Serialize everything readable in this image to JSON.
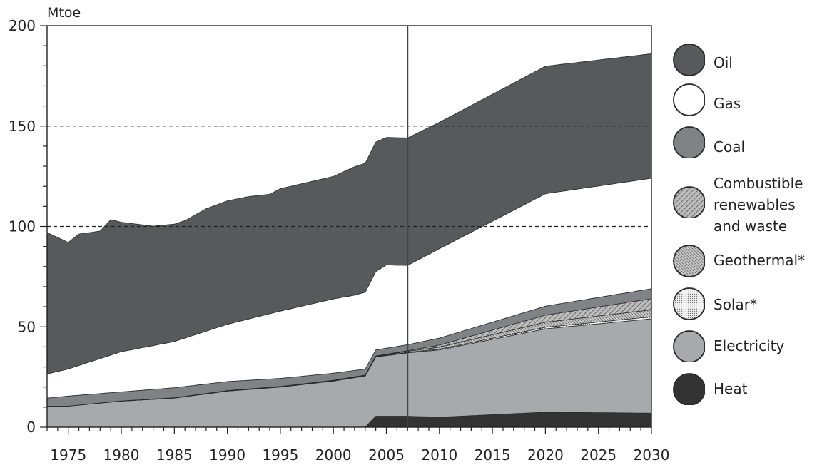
{
  "chart_data": {
    "type": "area",
    "unit_label": "Mtoe",
    "ylim": [
      0,
      200
    ],
    "y_ticks": [
      0,
      50,
      100,
      150,
      200
    ],
    "xlim": [
      1973,
      2030
    ],
    "x_ticks": [
      1975,
      1980,
      1985,
      1990,
      1995,
      2000,
      2005,
      2010,
      2015,
      2020,
      2025,
      2030
    ],
    "grid": "dashed horizontal at 100 and 150",
    "projection_divider_x": 2007,
    "legend_position": "right",
    "series": [
      {
        "name": "Heat",
        "color": "#333333",
        "x": [
          1973,
          2003,
          2004,
          2007,
          2010,
          2020,
          2030
        ],
        "values": [
          0,
          0,
          5.5,
          5.5,
          5,
          7.5,
          7
        ]
      },
      {
        "name": "Electricity",
        "color": "#a7a9ac",
        "x": [
          1973,
          1975,
          1980,
          1985,
          1990,
          1995,
          2000,
          2003,
          2004,
          2007,
          2010,
          2020,
          2030
        ],
        "values": [
          10.5,
          10.5,
          13,
          14.5,
          18,
          20,
          23,
          25.5,
          29.5,
          31.5,
          33.5,
          41.5,
          47
        ]
      },
      {
        "name": "Solar*",
        "color": "#d6d6d6",
        "x": [
          1973,
          2004,
          2007,
          2010,
          2020,
          2030
        ],
        "values": [
          0,
          0,
          0.3,
          0.4,
          0.8,
          1
        ]
      },
      {
        "name": "Geothermal*",
        "color": "#8e8e8e",
        "x": [
          1973,
          2004,
          2007,
          2010,
          2020,
          2030
        ],
        "values": [
          0,
          0.2,
          0.5,
          1,
          2.5,
          3.5
        ]
      },
      {
        "name": "Combustible renewables and waste",
        "color": "#9a9a9a",
        "x": [
          1973,
          2007,
          2010,
          2020,
          2030
        ],
        "values": [
          0,
          0.3,
          1,
          3.5,
          5.5
        ]
      },
      {
        "name": "Coal",
        "color": "#808285",
        "x": [
          1973,
          1975,
          1980,
          1985,
          1990,
          1995,
          2000,
          2003,
          2004,
          2007,
          2010,
          2020,
          2030
        ],
        "values": [
          4,
          5,
          4.5,
          5,
          4.5,
          4,
          3.5,
          3,
          3,
          3,
          3.5,
          4.5,
          5
        ]
      },
      {
        "name": "Gas",
        "color": "#ffffff",
        "x": [
          1973,
          1975,
          1980,
          1985,
          1990,
          1995,
          2000,
          2002,
          2004,
          2005,
          2007,
          2010,
          2020,
          2030
        ],
        "values": [
          12,
          13.5,
          20,
          23,
          28.5,
          33.5,
          37,
          37.5,
          39,
          41.5,
          39.5,
          44.5,
          56,
          55
        ]
      },
      {
        "name": "Oil",
        "color": "#58595b",
        "x": [
          1973,
          1975,
          1976,
          1978,
          1979,
          1980,
          1983,
          1985,
          1986,
          1988,
          1990,
          1992,
          1994,
          1995,
          1997,
          2000,
          2002,
          2004,
          2005,
          2007,
          2010,
          2020,
          2030
        ],
        "values": [
          70.5,
          63,
          65.5,
          63.5,
          67.5,
          64.5,
          59.5,
          58.5,
          58.5,
          61,
          61.5,
          61,
          59.5,
          61,
          61,
          61,
          64,
          64.5,
          63.5,
          63.5,
          63,
          63.5,
          62
        ]
      }
    ]
  }
}
